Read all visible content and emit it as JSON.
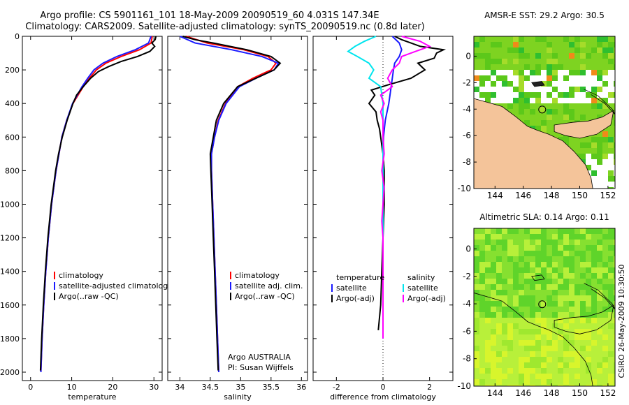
{
  "header": {
    "line1": "Argo profile: CS 5901161_101 18-May-2009 20090519_60 4.031S 147.34E",
    "line2": "Climatology: CARS2009. Satellite-adjusted climatology: synTS_20090519.nc (0.8d later)"
  },
  "colors": {
    "climatology": "#ff0000",
    "satellite": "#1a1aff",
    "argo": "#000000",
    "cyan": "#00e5ee",
    "magenta": "#ff00ff",
    "land": "#f4c49a",
    "sla_field": "#b8f03a"
  },
  "footer": {
    "side_text": "CSIRO 26-May-2009 10:30:50"
  },
  "chart_data": [
    {
      "type": "line",
      "id": "temperature",
      "xlabel": "temperature",
      "xlim": [
        -2,
        32
      ],
      "ylim": [
        0,
        2050
      ],
      "xticks": [
        "0",
        "10",
        "20",
        "30"
      ],
      "xtick_values": [
        0,
        10,
        20,
        30
      ],
      "yticks": [
        "0",
        "200",
        "400",
        "600",
        "800",
        "1000",
        "1200",
        "1400",
        "1600",
        "1800",
        "2000"
      ],
      "ytick_values": [
        0,
        200,
        400,
        600,
        800,
        1000,
        1200,
        1400,
        1600,
        1800,
        2000
      ],
      "legend": [
        "climatology",
        "satellite-adjusted climatology",
        "Argo(..raw -QC)"
      ],
      "series": [
        {
          "name": "climatology",
          "depth": [
            0,
            40,
            80,
            120,
            160,
            200,
            250,
            300,
            400,
            500,
            600,
            700,
            800,
            1000,
            1200,
            1400,
            1600,
            1800,
            2000
          ],
          "values": [
            29.6,
            29.3,
            26.5,
            22,
            18.3,
            16,
            14.3,
            12.8,
            10.3,
            8.8,
            7.6,
            6.9,
            6.2,
            5.1,
            4.3,
            3.7,
            3.2,
            2.8,
            2.5
          ]
        },
        {
          "name": "satellite-adjusted climatology",
          "depth": [
            0,
            40,
            80,
            120,
            160,
            200,
            250,
            300,
            400,
            500,
            600,
            700,
            800,
            1000,
            1200,
            1400,
            1600,
            1800,
            2000
          ],
          "values": [
            29.3,
            28.7,
            25.5,
            21,
            17.6,
            15.4,
            13.9,
            12.5,
            10.2,
            8.8,
            7.6,
            6.9,
            6.2,
            5.1,
            4.3,
            3.7,
            3.2,
            2.8,
            2.5
          ]
        },
        {
          "name": "Argo(..raw -QC)",
          "depth": [
            0,
            20,
            40,
            60,
            90,
            120,
            150,
            180,
            210,
            250,
            300,
            350,
            400,
            500,
            600,
            700,
            800,
            1000,
            1200,
            1400,
            1600,
            1800,
            1990
          ],
          "values": [
            30.5,
            30.3,
            29.5,
            30.2,
            29,
            26,
            22,
            19,
            16.5,
            14.6,
            12.8,
            11.2,
            10.3,
            8.9,
            7.7,
            6.8,
            6.1,
            5,
            4.2,
            3.6,
            3.1,
            2.7,
            2.4
          ]
        }
      ]
    },
    {
      "type": "line",
      "id": "salinity",
      "xlabel": "salinity",
      "xlim": [
        33.8,
        36.1
      ],
      "ylim": [
        0,
        2050
      ],
      "xticks": [
        "34",
        "34.5",
        "35",
        "35.5",
        "36"
      ],
      "xtick_values": [
        34,
        34.5,
        35,
        35.5,
        36
      ],
      "legend": [
        "climatology",
        "satellite adj. clim.",
        "Argo(..raw -QC)"
      ],
      "annotation": [
        "Argo AUSTRALIA",
        "PI: Susan Wijffels"
      ],
      "series": [
        {
          "name": "climatology",
          "depth": [
            0,
            40,
            80,
            120,
            160,
            200,
            250,
            300,
            400,
            500,
            600,
            700,
            800,
            1000,
            1200,
            1400,
            1600,
            1800,
            2000
          ],
          "values": [
            34.1,
            34.45,
            35.05,
            35.45,
            35.58,
            35.5,
            35.2,
            34.95,
            34.75,
            34.63,
            34.57,
            34.52,
            34.52,
            34.54,
            34.56,
            34.58,
            34.6,
            34.62,
            34.64
          ]
        },
        {
          "name": "satellite adj. clim.",
          "depth": [
            0,
            40,
            80,
            120,
            160,
            200,
            250,
            300,
            400,
            500,
            600,
            700,
            800,
            1000,
            1200,
            1400,
            1600,
            1800,
            2000
          ],
          "values": [
            34,
            34.25,
            34.85,
            35.35,
            35.62,
            35.55,
            35.25,
            34.98,
            34.76,
            34.64,
            34.57,
            34.52,
            34.52,
            34.54,
            34.56,
            34.58,
            34.6,
            34.62,
            34.64
          ]
        },
        {
          "name": "Argo(..raw -QC)",
          "depth": [
            0,
            20,
            40,
            80,
            120,
            160,
            200,
            250,
            300,
            400,
            500,
            600,
            700,
            800,
            1000,
            1200,
            1400,
            1600,
            1800,
            1990
          ],
          "values": [
            34.05,
            34.25,
            34.55,
            35.1,
            35.5,
            35.65,
            35.55,
            35.25,
            34.95,
            34.72,
            34.6,
            34.55,
            34.5,
            34.51,
            34.53,
            34.55,
            34.57,
            34.59,
            34.61,
            34.63
          ]
        }
      ]
    },
    {
      "type": "line",
      "id": "difference",
      "xlabel": "difference from climatology",
      "xlim": [
        -3,
        3
      ],
      "ylim": [
        0,
        2050
      ],
      "xticks": [
        "-2",
        "0",
        "2"
      ],
      "xtick_values": [
        -2,
        0,
        2
      ],
      "legend_left": [
        "temperature",
        "satellite",
        "Argo(-adj)"
      ],
      "legend_right": [
        "salinity",
        "satellite",
        "Argo(-adj)"
      ],
      "series": [
        {
          "name": "temperature satellite",
          "depth": [
            0,
            40,
            80,
            120,
            160,
            200,
            250,
            300,
            350,
            400,
            500,
            600,
            800,
            1000,
            1200,
            1500,
            1700,
            1800
          ],
          "values": [
            0.4,
            0.7,
            0.8,
            0.7,
            0.5,
            0.45,
            0.4,
            0.35,
            0.3,
            0.25,
            0.1,
            0.02,
            0,
            0,
            0,
            0,
            0,
            0
          ]
        },
        {
          "name": "temperature Argo(-adj)",
          "depth": [
            0,
            20,
            40,
            60,
            80,
            100,
            130,
            160,
            200,
            250,
            290,
            320,
            350,
            400,
            450,
            500,
            550,
            600,
            700,
            800,
            1000,
            1200,
            1400,
            1600,
            1750
          ],
          "values": [
            0.5,
            0.8,
            1.2,
            1.6,
            2.6,
            2.3,
            2.2,
            1.5,
            1.8,
            1.2,
            0.2,
            -0.5,
            -0.35,
            -0.6,
            -0.3,
            -0.25,
            -0.15,
            -0.1,
            0,
            0.05,
            0.05,
            0,
            -0.05,
            -0.1,
            -0.2
          ]
        },
        {
          "name": "salinity satellite",
          "depth": [
            0,
            30,
            60,
            90,
            120,
            160,
            200,
            250,
            300,
            350,
            400,
            500,
            600,
            700,
            800,
            1000,
            1200,
            1400,
            1600,
            1800
          ],
          "values": [
            -0.3,
            -0.8,
            -1.2,
            -1.5,
            -1.1,
            -0.6,
            -0.4,
            -0.6,
            -0.1,
            -0.05,
            0,
            0,
            0,
            0,
            0,
            0,
            0,
            0,
            0,
            0
          ]
        },
        {
          "name": "salinity Argo(-adj)",
          "depth": [
            0,
            30,
            60,
            90,
            120,
            160,
            200,
            250,
            300,
            350,
            400,
            450,
            500,
            600,
            700,
            800,
            900,
            1000,
            1100,
            1200,
            1400,
            1600,
            1800
          ],
          "values": [
            0.8,
            1.6,
            2.0,
            1.4,
            0.8,
            0.7,
            0.4,
            0.2,
            0.4,
            -0.1,
            0.05,
            -0.1,
            0,
            0,
            0.05,
            -0.05,
            0.05,
            0,
            -0.05,
            0,
            0,
            0,
            0
          ]
        }
      ]
    },
    {
      "type": "heatmap",
      "id": "sst-map",
      "title": "AMSR-E SST: 29.2 Argo: 30.5",
      "xlim": [
        142.5,
        152.5
      ],
      "ylim": [
        -10,
        1.5
      ],
      "xticks": [
        "144",
        "146",
        "148",
        "150",
        "152"
      ],
      "xtick_values": [
        144,
        146,
        148,
        150,
        152
      ],
      "yticks": [
        "0",
        "-2",
        "-4",
        "-6",
        "-8",
        "-10"
      ],
      "ytick_values": [
        0,
        -2,
        -4,
        -6,
        -8,
        -10
      ],
      "marker": {
        "lon": 147.34,
        "lat": -4.031
      }
    },
    {
      "type": "heatmap",
      "id": "sla-map",
      "title": "Altimetric SLA: 0.14 Argo: 0.11",
      "xlim": [
        142.5,
        152.5
      ],
      "ylim": [
        -10,
        1.5
      ],
      "xticks": [
        "144",
        "146",
        "148",
        "150",
        "152"
      ],
      "xtick_values": [
        144,
        146,
        148,
        150,
        152
      ],
      "yticks": [
        "0",
        "-2",
        "-4",
        "-6",
        "-8",
        "-10"
      ],
      "ytick_values": [
        0,
        -2,
        -4,
        -6,
        -8,
        -10
      ],
      "marker": {
        "lon": 147.34,
        "lat": -4.031
      }
    }
  ]
}
